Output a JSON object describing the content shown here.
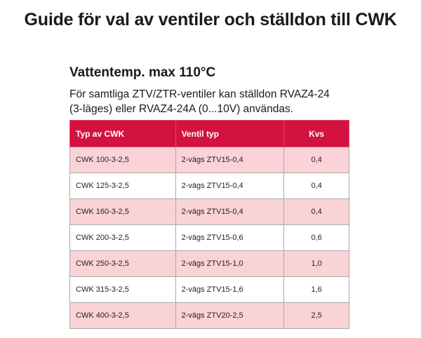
{
  "title": "Guide för val av ventiler och ställdon till CWK",
  "section": {
    "heading": "Vattentemp. max 110°C",
    "intro_line1": "För samtliga ZTV/ZTR-ventiler kan ställdon RVAZ4-24",
    "intro_line2": "(3-läges) eller RVAZ4-24A (0...10V) användas."
  },
  "table": {
    "headers": [
      "Typ av CWK",
      "Ventil typ",
      "Kvs"
    ],
    "rows": [
      [
        "CWK 100-3-2,5",
        "2-vägs ZTV15-0,4",
        "0,4"
      ],
      [
        "CWK 125-3-2,5",
        "2-vägs ZTV15-0,4",
        "0,4"
      ],
      [
        "CWK 160-3-2,5",
        "2-vägs ZTV15-0,4",
        "0,4"
      ],
      [
        "CWK 200-3-2,5",
        "2-vägs ZTV15-0,6",
        "0,6"
      ],
      [
        "CWK 250-3-2,5",
        "2-vägs ZTV15-1,0",
        "1,0"
      ],
      [
        "CWK 315-3-2,5",
        "2-vägs ZTV15-1,6",
        "1,6"
      ],
      [
        "CWK 400-3-2,5",
        "2-vägs ZTV20-2,5",
        "2,5"
      ]
    ]
  },
  "colors": {
    "header_background": "#d4123f",
    "row_highlight": "#f9d3d6",
    "row_plain": "#ffffff"
  }
}
